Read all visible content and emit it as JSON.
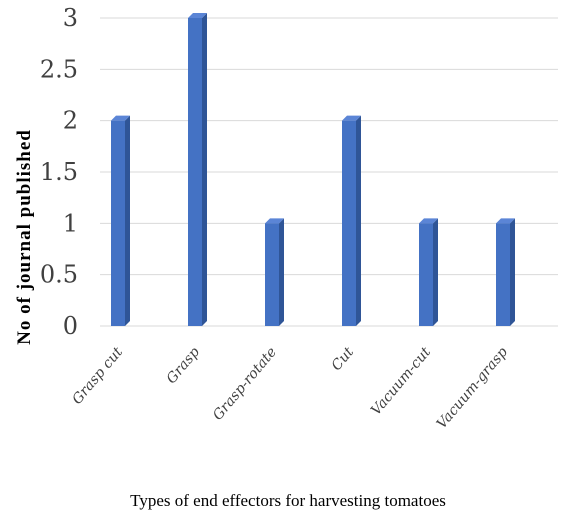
{
  "chart_data": {
    "type": "bar",
    "title": "",
    "xlabel": "Types of end effectors for harvesting tomatoes",
    "ylabel": "No of journal published",
    "categories": [
      "Grasp cut",
      "Grasp",
      "Grasp-rotate",
      "Cut",
      "Vacuum-cut",
      "Vacuum-grasp"
    ],
    "values": [
      2,
      3,
      1,
      2,
      1,
      1
    ],
    "ylim": [
      0,
      3
    ],
    "yticks": [
      "0",
      "0.5",
      "1",
      "1.5",
      "2",
      "2.5",
      "3"
    ],
    "grid": true,
    "legend": "none",
    "colors": {
      "bar_front": "#4472c4",
      "bar_side": "#2f5597",
      "bar_top": "#5b85d6",
      "grid": "#d9d9d9"
    }
  }
}
